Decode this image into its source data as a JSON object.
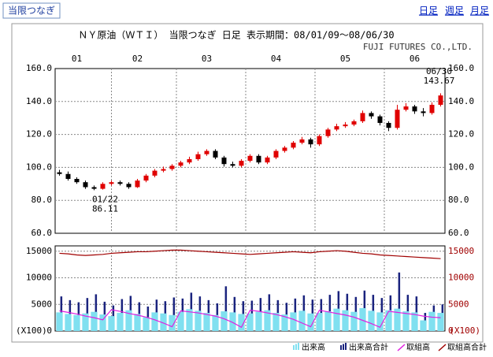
{
  "header": {
    "tab": "当限つなぎ",
    "links": [
      "日足",
      "週足",
      "月足"
    ]
  },
  "chart_data": [
    {
      "type": "candlestick",
      "title": "ＮＹ原油（ＷＴＩ） 当限つなぎ 日足 表示期間：08/01/09～08/06/30",
      "subtitle": "FUJI FUTURES CO.,LTD.",
      "categories": [
        null,
        null,
        "01",
        null,
        null,
        null,
        null,
        null,
        null,
        "02",
        null,
        null,
        null,
        null,
        null,
        null,
        null,
        "03",
        null,
        null,
        null,
        null,
        null,
        null,
        null,
        "04",
        null,
        null,
        null,
        null,
        null,
        null,
        null,
        "05",
        null,
        null,
        null,
        null,
        null,
        null,
        null,
        "06",
        null,
        null,
        null
      ],
      "open": [
        97,
        96,
        93,
        91,
        88,
        87,
        90,
        91,
        90,
        88,
        92,
        95,
        98,
        99,
        101,
        103,
        105,
        108,
        110,
        106,
        102,
        101,
        104,
        107,
        103,
        106,
        110,
        112,
        115,
        117,
        114,
        119,
        123,
        125,
        126,
        128,
        133,
        131,
        127,
        124,
        135,
        137,
        134,
        133,
        138
      ],
      "high": [
        98.5,
        97.5,
        94,
        92,
        89,
        91,
        92,
        92,
        91,
        93,
        96,
        99,
        100.5,
        102,
        104,
        106.5,
        109.5,
        111,
        111,
        107,
        103.5,
        105,
        108,
        108,
        107,
        111,
        113,
        116,
        118.5,
        118,
        120,
        124,
        126.5,
        127.5,
        129,
        134.5,
        134,
        132,
        128,
        138,
        139,
        138,
        136,
        139.5,
        145
      ],
      "low": [
        95,
        92,
        90,
        87,
        86.11,
        86.5,
        89,
        89,
        87,
        87.5,
        91,
        94,
        97,
        98,
        100,
        102,
        104,
        107,
        105,
        100.5,
        100,
        100,
        103,
        102,
        102,
        105,
        109,
        111,
        114,
        112,
        113,
        118,
        122,
        124,
        125,
        127,
        129.5,
        125.5,
        122,
        123,
        134,
        132.5,
        131,
        132,
        137
      ],
      "close": [
        96,
        93,
        91,
        88,
        87,
        90,
        91,
        90,
        88,
        92,
        95,
        98,
        99,
        101,
        103,
        105,
        108,
        110,
        106,
        102,
        101,
        104,
        107,
        103,
        106,
        110,
        112,
        115,
        117,
        114,
        119,
        123,
        125,
        126,
        128,
        133,
        131,
        127,
        124,
        135,
        137,
        134,
        133,
        138,
        143.67
      ],
      "up_color": "#e00000",
      "down_color": "#000000",
      "ylim": [
        60,
        160
      ],
      "yticks": [
        {
          "value": 60,
          "label": "60.0"
        },
        {
          "value": 80,
          "label": "80.0"
        },
        {
          "value": 100,
          "label": "100.0"
        },
        {
          "value": 120,
          "label": "120.0"
        },
        {
          "value": 140,
          "label": "140.0"
        },
        {
          "value": 160,
          "label": "160.0"
        }
      ],
      "grid": true,
      "annotations": [
        {
          "label": "01/22",
          "value": 86.11
        },
        {
          "label": "06/30",
          "value": 143.67
        }
      ]
    },
    {
      "type": "volume",
      "unit": "(X100)",
      "ylim": [
        0,
        16000
      ],
      "yticks": [
        0,
        5000,
        10000,
        15000
      ],
      "y2lim": [
        0,
        16000
      ],
      "y2ticks": [
        0,
        5000,
        10000,
        15000
      ],
      "y2color": "#a00000",
      "series": [
        {
          "name": "出来高合計",
          "kind": "bar",
          "color": "#1a237e",
          "values": [
            6500,
            5800,
            5400,
            6200,
            6900,
            5500,
            4800,
            6000,
            6600,
            5400,
            4600,
            5900,
            5600,
            6300,
            6100,
            7200,
            6500,
            5800,
            5200,
            8400,
            6400,
            5600,
            5700,
            6200,
            6900,
            5800,
            5300,
            6100,
            6700,
            5900,
            6000,
            6800,
            7500,
            7000,
            6400,
            7600,
            6800,
            6200,
            6700,
            11000,
            6800,
            6500,
            3400,
            4800,
            5000
          ]
        },
        {
          "name": "出来高",
          "kind": "bar",
          "color": "#80e0f0",
          "values": [
            3500,
            3200,
            3000,
            3300,
            3600,
            3100,
            2800,
            3400,
            3900,
            3200,
            2600,
            3500,
            3300,
            3000,
            3600,
            4100,
            3800,
            3400,
            3000,
            3700,
            3500,
            3200,
            3300,
            3600,
            3900,
            3400,
            3100,
            3500,
            3800,
            3300,
            3400,
            3700,
            4200,
            3900,
            3600,
            4300,
            3800,
            3500,
            3900,
            4200,
            3700,
            3500,
            2000,
            3600,
            3400
          ]
        },
        {
          "name": "取組高",
          "kind": "line",
          "axis": "y2",
          "color": "#e020e0",
          "values": [
            3800,
            3500,
            3200,
            2800,
            2500,
            2100,
            4000,
            3700,
            3300,
            3000,
            2600,
            2100,
            1500,
            800,
            3800,
            3600,
            3400,
            3100,
            2800,
            2300,
            1600,
            700,
            3900,
            3700,
            3400,
            3100,
            2700,
            2200,
            1500,
            800,
            3900,
            3600,
            3300,
            3000,
            2600,
            2000,
            1400,
            700,
            3700,
            3500,
            3300,
            3100,
            2800,
            2600,
            2500
          ]
        },
        {
          "name": "取組高合計",
          "kind": "line",
          "axis": "y2",
          "color": "#a00000",
          "values": [
            14600,
            14500,
            14300,
            14200,
            14300,
            14400,
            14600,
            14700,
            14800,
            14900,
            14900,
            15000,
            15100,
            15200,
            15200,
            15100,
            15000,
            14900,
            14800,
            14700,
            14600,
            14500,
            14400,
            14500,
            14600,
            14700,
            14800,
            14900,
            14800,
            14700,
            14900,
            15000,
            15100,
            15000,
            14800,
            14600,
            14500,
            14300,
            14200,
            14100,
            14000,
            13900,
            13800,
            13700,
            13600
          ]
        }
      ]
    }
  ]
}
